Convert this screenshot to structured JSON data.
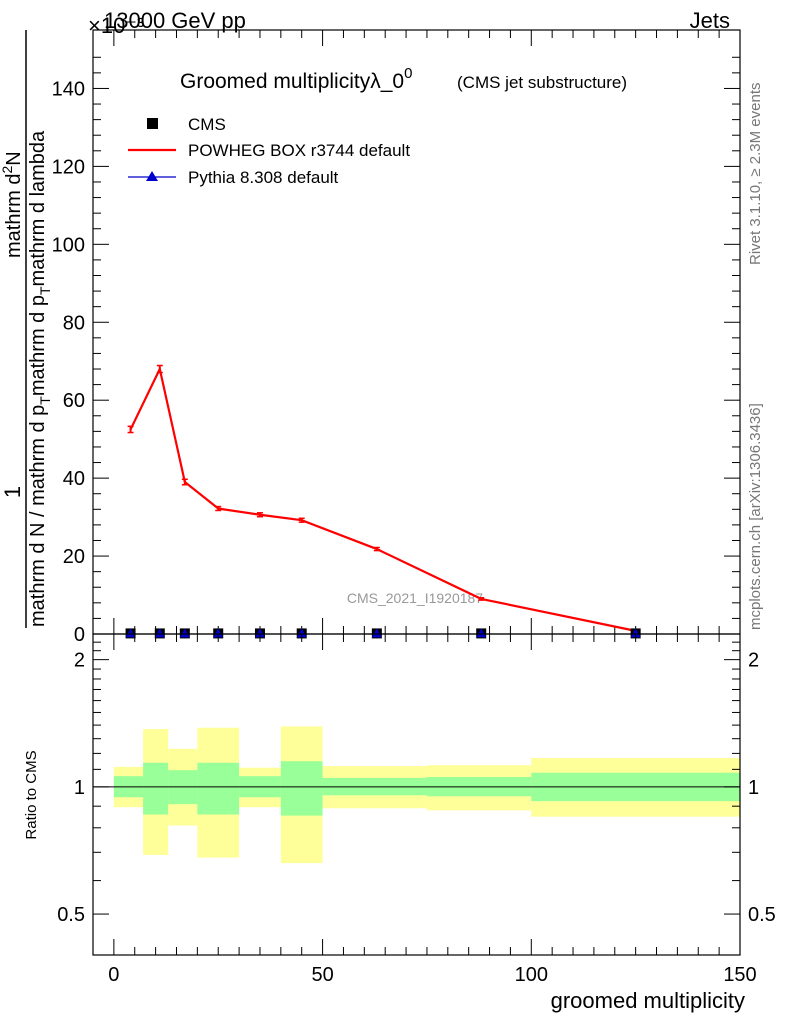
{
  "header": {
    "left": "13000 GeV pp",
    "right": "Jets",
    "exponent_label": "×10⁻³",
    "right_side_top": "Rivet 3.1.10, ≥ 2.3M events",
    "right_side_bottom": "mcplots.cern.ch [arXiv:1306.3436]",
    "watermark": "CMS_2021_I1920187"
  },
  "chart_data": [
    {
      "type": "line",
      "title": "Groomed multiplicityλ_0",
      "title_superscript": "0",
      "subtitle": "(CMS jet substructure)",
      "ylabel": "1 / mathrm d N / mathrm d p_T mathrm d p_T mathrm d lambda mathrm d^2N",
      "xlim": [
        -5,
        150
      ],
      "ylim": [
        0,
        155
      ],
      "y_scale_note": "×10⁻³",
      "yticks": [
        0,
        20,
        40,
        60,
        80,
        100,
        120,
        140
      ],
      "yticklabels": [
        "0",
        "20",
        "40",
        "60",
        "80",
        "100",
        "120",
        "140"
      ],
      "legend": [
        {
          "label": "CMS",
          "marker": "square",
          "color": "#000000"
        },
        {
          "label": "POWHEG BOX r3744 default",
          "marker": "line",
          "color": "#ff0000"
        },
        {
          "label": "Pythia 8.308 default",
          "marker": "triangle",
          "color": "#0000cc"
        }
      ],
      "series": [
        {
          "name": "POWHEG BOX r3744 default",
          "color": "#ff0000",
          "x": [
            4,
            11,
            17,
            25,
            35,
            45,
            63,
            88,
            125
          ],
          "y": [
            52.5,
            68,
            39,
            32.2,
            30.6,
            29.2,
            21.8,
            9,
            0.8
          ],
          "yerr": [
            0.8,
            0.9,
            0.7,
            0.5,
            0.5,
            0.5,
            0.4,
            0.3,
            0.1
          ]
        },
        {
          "name": "CMS",
          "color": "#000000",
          "x": [
            4,
            11,
            17,
            25,
            35,
            45,
            63,
            88,
            125
          ],
          "y": [
            0.15,
            0.15,
            0.15,
            0.15,
            0.15,
            0.15,
            0.15,
            0.15,
            0.15
          ]
        },
        {
          "name": "Pythia 8.308 default",
          "color": "#0000cc",
          "x": [
            4,
            11,
            17,
            25,
            35,
            45,
            63,
            88,
            125
          ],
          "y": [
            0.15,
            0.15,
            0.15,
            0.15,
            0.15,
            0.15,
            0.15,
            0.15,
            0.15
          ]
        }
      ]
    },
    {
      "type": "area",
      "ylabel": "Ratio to CMS",
      "xlabel": "groomed multiplicity",
      "xlim": [
        -5,
        150
      ],
      "ylim": [
        0.4,
        2.3
      ],
      "y_scale": "log",
      "xticks": [
        0,
        50,
        100,
        150
      ],
      "xticklabels": [
        "0",
        "50",
        "100",
        "150"
      ],
      "yticks": [
        0.5,
        1,
        2
      ],
      "yticklabels": [
        "0.5",
        "1",
        "2"
      ],
      "reference_line": 1,
      "bands": [
        {
          "xlo": 0,
          "xhi": 7,
          "inner": [
            0.945,
            1.06
          ],
          "outer": [
            0.895,
            1.115
          ]
        },
        {
          "xlo": 7,
          "xhi": 13,
          "inner": [
            0.86,
            1.14
          ],
          "outer": [
            0.69,
            1.37
          ]
        },
        {
          "xlo": 13,
          "xhi": 20,
          "inner": [
            0.91,
            1.095
          ],
          "outer": [
            0.81,
            1.23
          ]
        },
        {
          "xlo": 20,
          "xhi": 30,
          "inner": [
            0.86,
            1.14
          ],
          "outer": [
            0.68,
            1.38
          ]
        },
        {
          "xlo": 30,
          "xhi": 40,
          "inner": [
            0.945,
            1.06
          ],
          "outer": [
            0.895,
            1.11
          ]
        },
        {
          "xlo": 40,
          "xhi": 50,
          "inner": [
            0.855,
            1.15
          ],
          "outer": [
            0.66,
            1.39
          ]
        },
        {
          "xlo": 50,
          "xhi": 75,
          "inner": [
            0.955,
            1.05
          ],
          "outer": [
            0.89,
            1.12
          ]
        },
        {
          "xlo": 75,
          "xhi": 100,
          "inner": [
            0.95,
            1.055
          ],
          "outer": [
            0.88,
            1.125
          ]
        },
        {
          "xlo": 100,
          "xhi": 150,
          "inner": [
            0.925,
            1.08
          ],
          "outer": [
            0.85,
            1.17
          ]
        }
      ],
      "band_colors": {
        "inner": "#99ff99",
        "outer": "#ffff99"
      }
    }
  ]
}
